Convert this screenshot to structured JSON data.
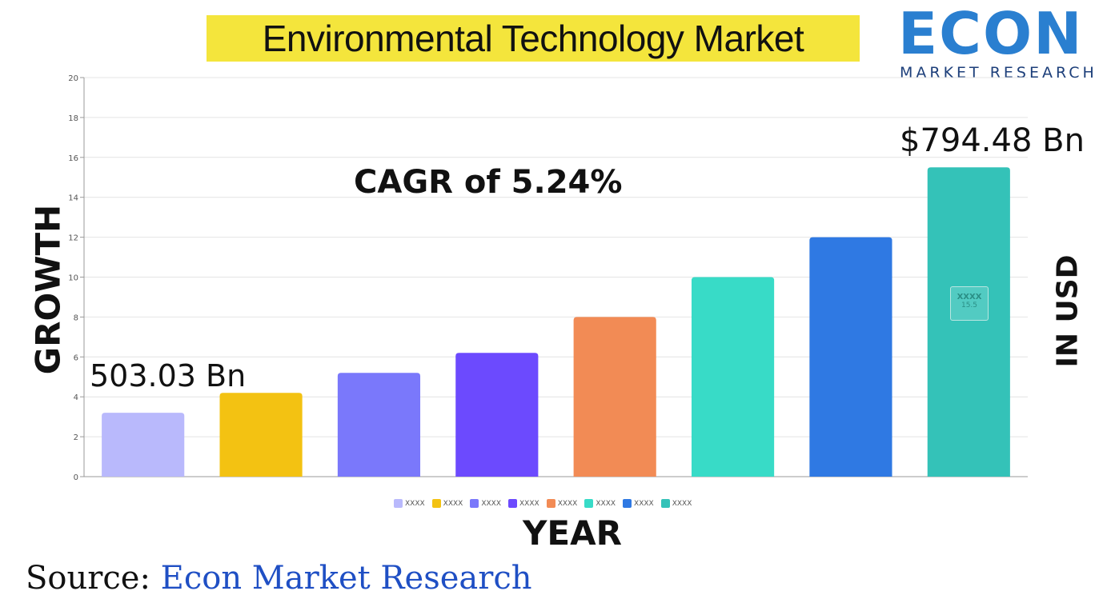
{
  "title": "Environmental Technology Market",
  "logo": {
    "word": "ECON",
    "subtitle": "MARKET RESEARCH",
    "color": "#2a7fd0"
  },
  "annotations": {
    "cagr": "CAGR of 5.24%",
    "start_value": "503.03 Bn",
    "end_value": "$794.48 Bn"
  },
  "axis_titles": {
    "y": "GROWTH",
    "x": "YEAR",
    "right": "IN USD"
  },
  "source": {
    "label": "Source:",
    "value": "Econ Market Research"
  },
  "tooltip": {
    "label": "XXXX",
    "value": "15.5"
  },
  "chart_data": {
    "type": "bar",
    "categories": [
      "XXXX",
      "XXXX",
      "XXXX",
      "XXXX",
      "XXXX",
      "XXXX",
      "XXXX",
      "XXXX"
    ],
    "values": [
      3.2,
      4.2,
      5.2,
      6.2,
      8.0,
      10.0,
      12.0,
      15.5
    ],
    "colors": [
      "#b9b9fc",
      "#f3c212",
      "#7a78fb",
      "#6c4afe",
      "#f28b55",
      "#38dbc7",
      "#2f79e3",
      "#34c2b8"
    ],
    "ylim": [
      0,
      20
    ],
    "yticks": [
      0,
      2,
      4,
      6,
      8,
      10,
      12,
      14,
      16,
      18,
      20
    ],
    "grid": true,
    "legend": "bottom"
  }
}
